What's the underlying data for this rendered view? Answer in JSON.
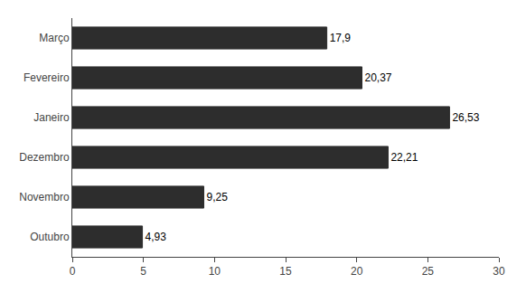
{
  "chart_data": {
    "type": "bar",
    "orientation": "horizontal",
    "categories": [
      "Outubro",
      "Novembro",
      "Dezembro",
      "Janeiro",
      "Fevereiro",
      "Março"
    ],
    "values": [
      4.93,
      9.25,
      22.21,
      26.53,
      20.37,
      17.9
    ],
    "value_labels": [
      "4,93",
      "9,25",
      "22,21",
      "26,53",
      "20,37",
      "17,9"
    ],
    "data_labels": true,
    "color": "#2d2d2d",
    "xlim": [
      0,
      30
    ],
    "xticks": [
      0,
      5,
      10,
      15,
      20,
      25,
      30
    ],
    "grid": false
  }
}
